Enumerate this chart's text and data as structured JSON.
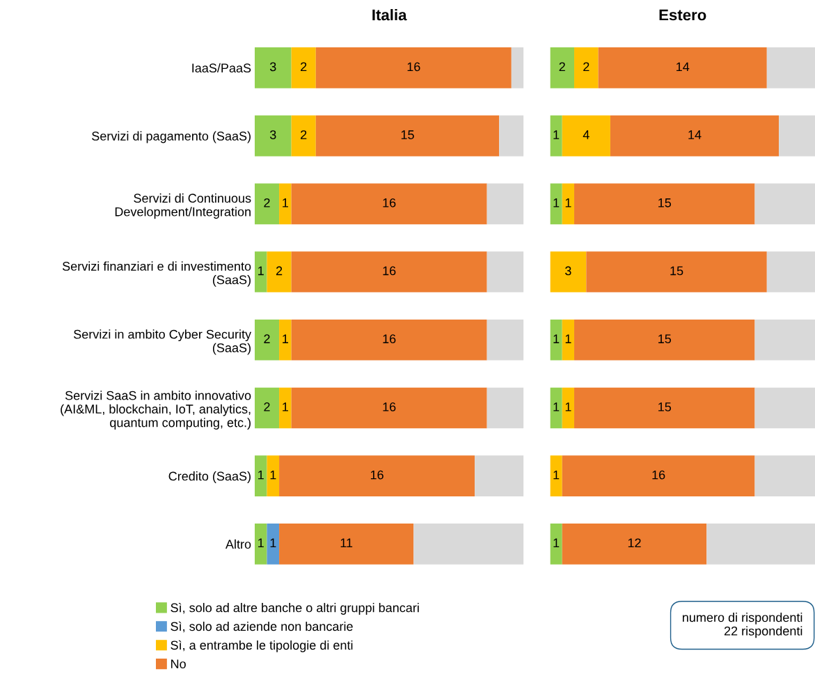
{
  "chart_data": [
    {
      "type": "bar",
      "orientation": "horizontal",
      "stacked": true,
      "title": "Italia",
      "legend": "bottom",
      "grid": false,
      "categories": [
        "IaaS/PaaS",
        "Servizi di pagamento (SaaS)",
        "Servizi di Continuous\nDevelopment/Integration",
        "Servizi finanziari e di investimento\n(SaaS)",
        "Servizi in ambito Cyber Security\n(SaaS)",
        "Servizi SaaS in ambito innovativo\n(AI&ML, blockchain, IoT, analytics,\nquantum computing, etc.)",
        "Credito (SaaS)",
        "Altro"
      ],
      "series": [
        {
          "name": "Sì, solo ad altre banche o altri gruppi bancari",
          "color": "#92d050",
          "values": [
            3,
            3,
            2,
            1,
            2,
            2,
            1,
            1
          ],
          "value_labels": [
            "3",
            "3",
            "2",
            "1",
            "2",
            "2",
            "1",
            "1"
          ]
        },
        {
          "name": "Sì, solo ad aziende non bancarie",
          "color": "#5b9bd5",
          "values": [
            null,
            null,
            null,
            null,
            null,
            null,
            null,
            1
          ],
          "value_labels": [
            null,
            null,
            null,
            null,
            null,
            null,
            null,
            "1"
          ]
        },
        {
          "name": "Sì, a entrambe le tipologie di enti",
          "color": "#ffc000",
          "values": [
            2,
            2,
            1,
            2,
            1,
            1,
            1,
            null
          ],
          "value_labels": [
            "2",
            "2",
            "1",
            "2",
            "1",
            "1",
            "1",
            null
          ]
        },
        {
          "name": "No",
          "color": "#ed7d31",
          "values": [
            16,
            15,
            16,
            16,
            16,
            16,
            16,
            11
          ],
          "value_labels": [
            "16",
            "15",
            "16",
            "16",
            "16",
            "16",
            "16",
            "11"
          ]
        },
        {
          "color": "#d9d9d9",
          "values": [
            1,
            2,
            3,
            3,
            3,
            3,
            4,
            9
          ]
        }
      ]
    },
    {
      "type": "bar",
      "orientation": "horizontal",
      "stacked": true,
      "title": "Estero",
      "grid": false,
      "categories": [
        null,
        null,
        null,
        null,
        null,
        null,
        null,
        null
      ],
      "annotations": [
        "numero di rispondenti\n22 rispondenti"
      ],
      "series": [
        {
          "color": "#92d050",
          "values": [
            2,
            1,
            1,
            null,
            1,
            1,
            null,
            1
          ],
          "value_labels": [
            "2",
            "1",
            "1",
            null,
            "1",
            "1",
            null,
            "1"
          ]
        },
        {
          "color": "#ffc000",
          "values": [
            2,
            4,
            1,
            3,
            1,
            1,
            1,
            null
          ],
          "value_labels": [
            "2",
            "4",
            "1",
            "3",
            "1",
            "1",
            "1",
            null
          ]
        },
        {
          "color": "#ed7d31",
          "values": [
            14,
            14,
            15,
            15,
            15,
            15,
            16,
            12
          ],
          "value_labels": [
            "14",
            "14",
            "15",
            "15",
            "15",
            "15",
            "16",
            "12"
          ]
        },
        {
          "color": "#d9d9d9",
          "values": [
            4,
            3,
            5,
            4,
            5,
            5,
            5,
            9
          ]
        }
      ]
    }
  ]
}
